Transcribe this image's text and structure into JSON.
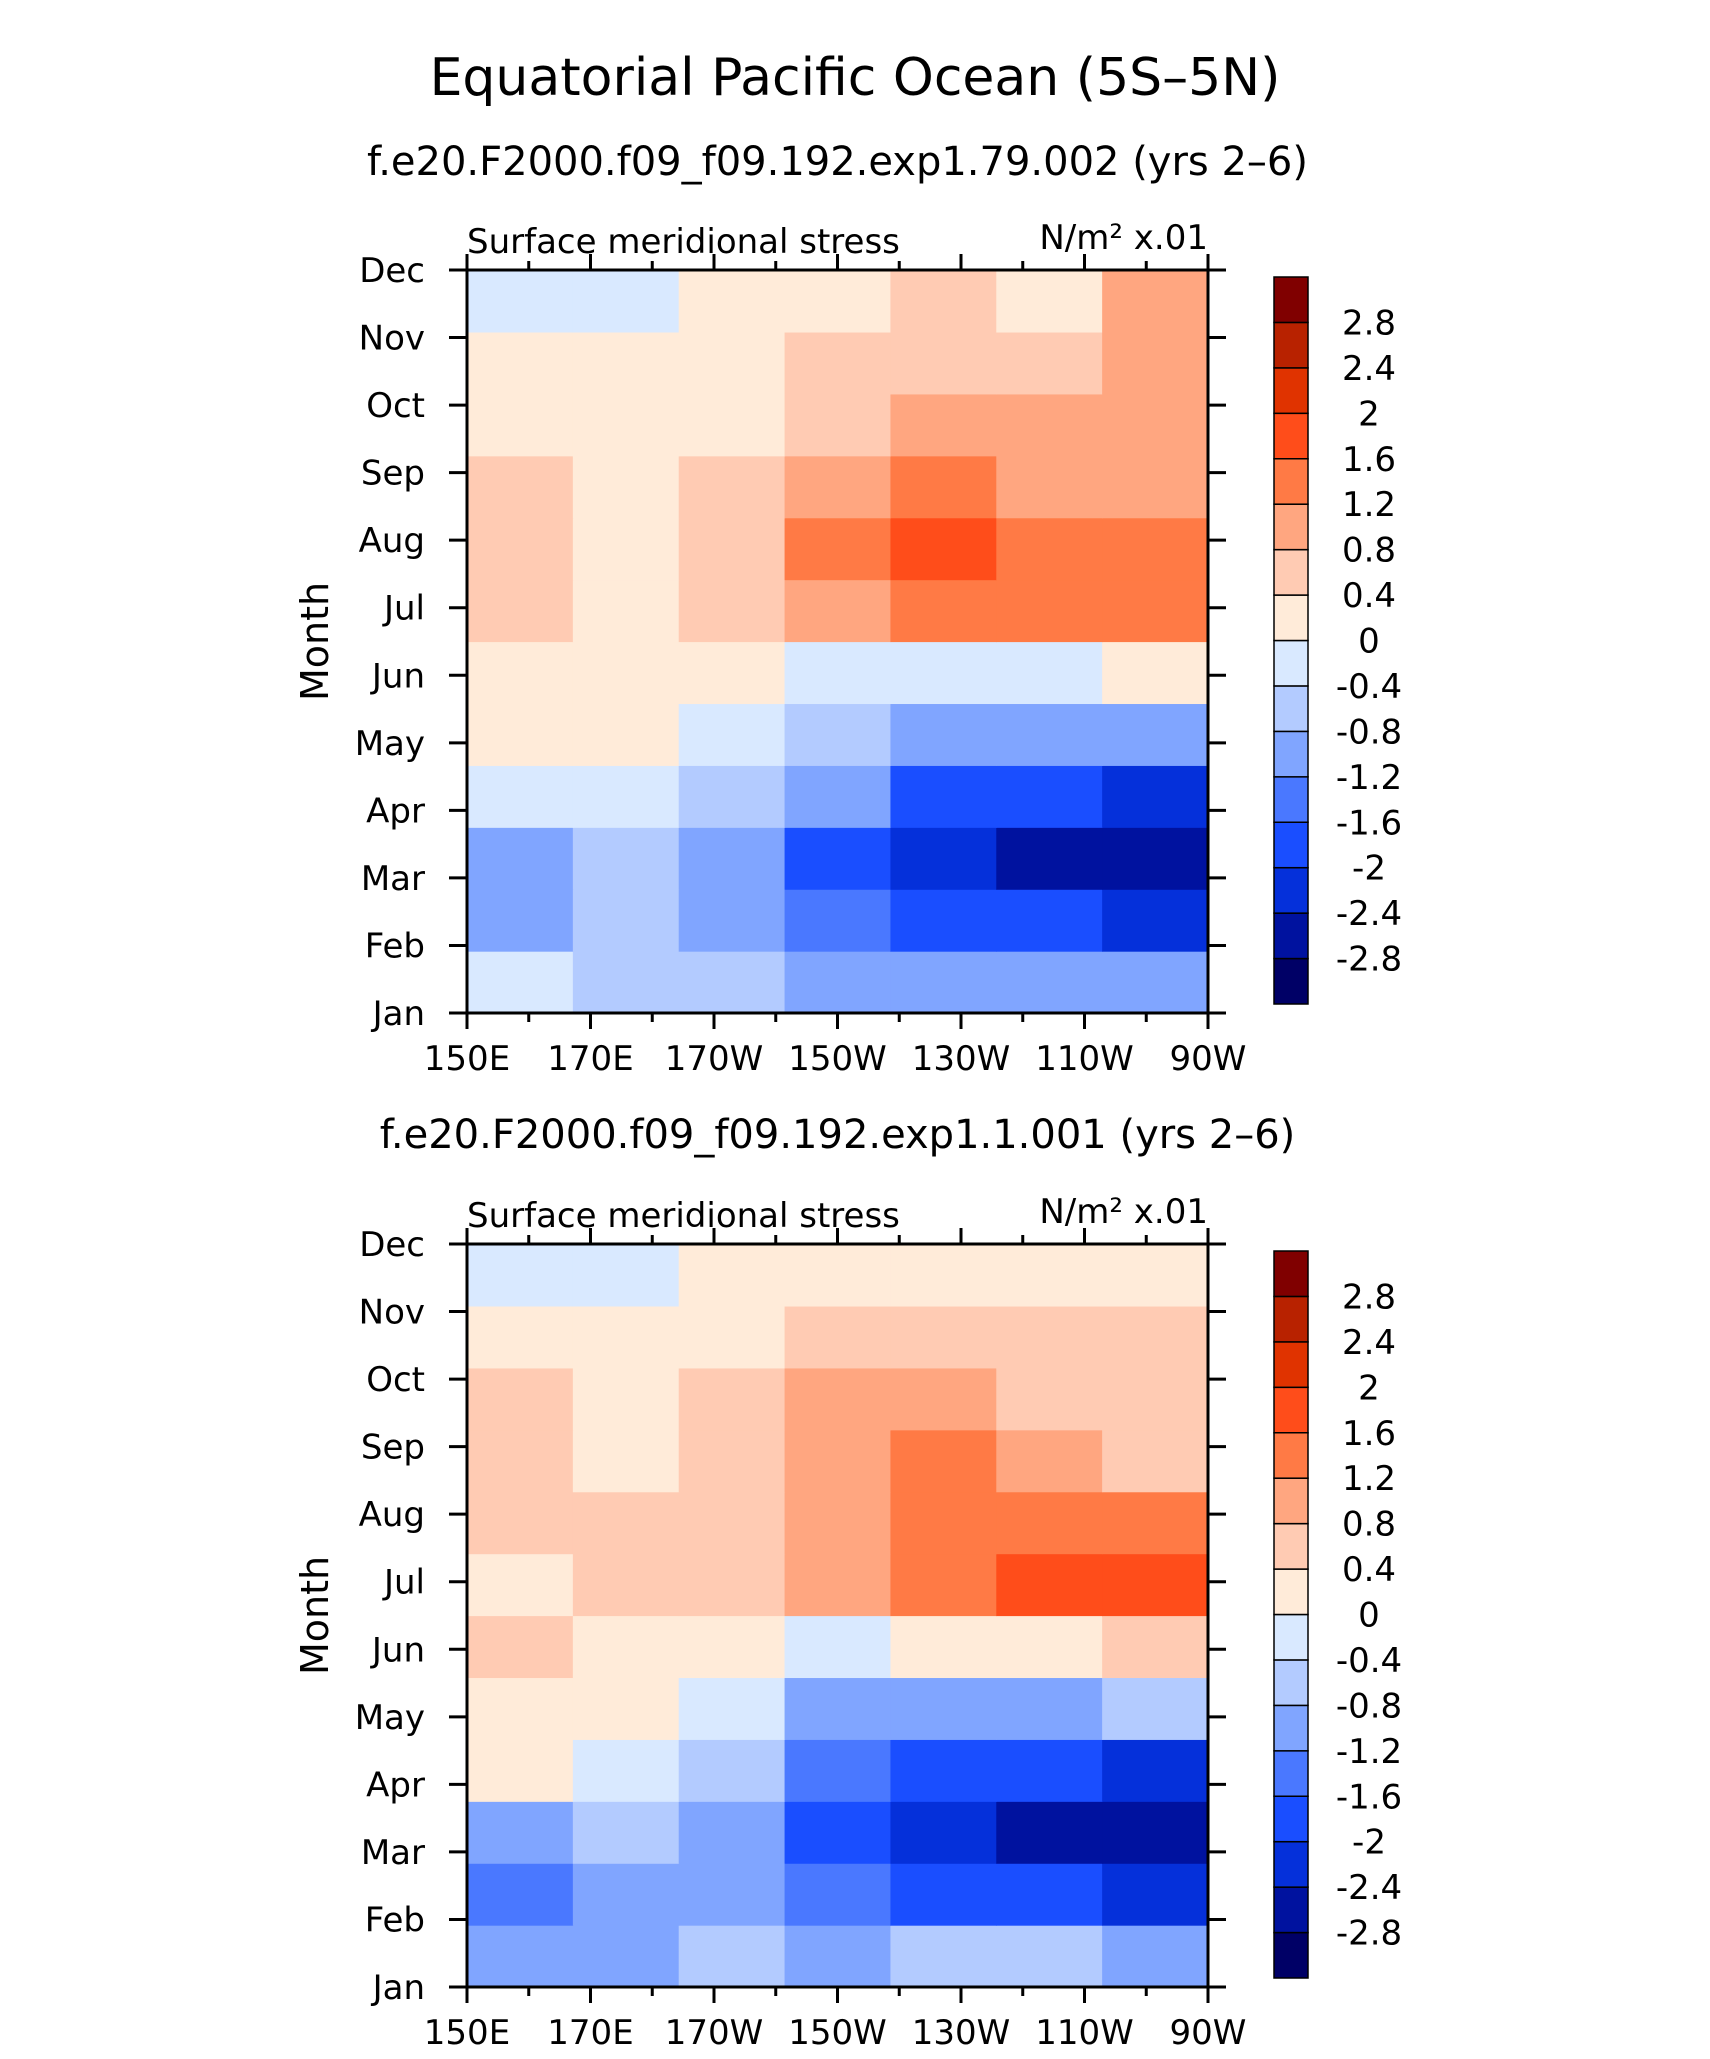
{
  "figure": {
    "title": "Equatorial Pacific Ocean (5S–5N)"
  },
  "chart_data": [
    {
      "type": "heatmap",
      "title": "f.e20.F2000.f09_f09.192.exp1.79.002 (yrs 2–6)",
      "left_label": "Surface meridional stress",
      "units_label": "N/m² x.01",
      "ylabel": "Month",
      "x": [
        "150E",
        "170E",
        "170W",
        "150W",
        "130W",
        "110W",
        "90W"
      ],
      "y": [
        "Jan",
        "Feb",
        "Mar",
        "Apr",
        "May",
        "Jun",
        "Jul",
        "Aug",
        "Sep",
        "Oct",
        "Nov",
        "Dec"
      ],
      "values": [
        [
          -0.3,
          -0.5,
          -0.7,
          -1.0,
          -1.0,
          -0.9,
          -1.0
        ],
        [
          -1.0,
          -0.5,
          -1.0,
          -1.3,
          -1.7,
          -2.0,
          -2.4
        ],
        [
          -1.0,
          -0.6,
          -1.2,
          -1.9,
          -2.2,
          -2.5,
          -2.6
        ],
        [
          -0.4,
          -0.3,
          -0.6,
          -1.1,
          -1.7,
          -2.0,
          -2.1
        ],
        [
          0.2,
          0.1,
          -0.3,
          -0.8,
          -1.0,
          -1.0,
          -0.9
        ],
        [
          0.2,
          0.2,
          0.1,
          -0.2,
          -0.3,
          -0.2,
          0.1
        ],
        [
          0.5,
          0.3,
          0.4,
          0.9,
          1.3,
          1.2,
          1.3
        ],
        [
          0.7,
          0.3,
          0.6,
          1.2,
          1.6,
          1.2,
          1.5
        ],
        [
          0.6,
          0.3,
          0.4,
          0.9,
          1.2,
          1.1,
          1.1
        ],
        [
          0.2,
          0.2,
          0.3,
          0.6,
          0.9,
          0.8,
          0.9
        ],
        [
          0.1,
          0.1,
          0.3,
          0.5,
          0.6,
          0.7,
          0.9
        ],
        [
          -0.1,
          -0.1,
          0.1,
          0.3,
          0.4,
          0.3,
          0.8
        ]
      ],
      "levels": [
        "-2.8",
        "-2.4",
        "-2",
        "-1.6",
        "-1.2",
        "-0.8",
        "-0.4",
        "0",
        "0.4",
        "0.8",
        "1.2",
        "1.6",
        "2",
        "2.4",
        "2.8"
      ],
      "colors": [
        "#000066",
        "#00129f",
        "#0530da",
        "#1a4eff",
        "#4a78ff",
        "#80a5ff",
        "#b3cbff",
        "#d9e9ff",
        "#ffebd9",
        "#ffcbb3",
        "#ffa680",
        "#ff7a45",
        "#ff4d1a",
        "#e03300",
        "#b82200",
        "#800000"
      ]
    },
    {
      "type": "heatmap",
      "title": "f.e20.F2000.f09_f09.192.exp1.1.001 (yrs 2–6)",
      "left_label": "Surface meridional stress",
      "units_label": "N/m² x.01",
      "ylabel": "Month",
      "x": [
        "150E",
        "170E",
        "170W",
        "150W",
        "130W",
        "110W",
        "90W"
      ],
      "y": [
        "Jan",
        "Feb",
        "Mar",
        "Apr",
        "May",
        "Jun",
        "Jul",
        "Aug",
        "Sep",
        "Oct",
        "Nov",
        "Dec"
      ],
      "values": [
        [
          -1.0,
          -0.9,
          -0.8,
          -1.0,
          -0.6,
          -0.6,
          -1.1
        ],
        [
          -1.3,
          -0.9,
          -0.9,
          -1.4,
          -1.8,
          -2.0,
          -2.2
        ],
        [
          -0.9,
          -0.8,
          -1.2,
          -1.9,
          -2.3,
          -2.6,
          -2.7
        ],
        [
          0.2,
          -0.2,
          -0.6,
          -1.3,
          -1.9,
          -2.0,
          -2.1
        ],
        [
          0.2,
          0.1,
          -0.4,
          -0.9,
          -1.1,
          -1.0,
          -0.8
        ],
        [
          0.5,
          0.3,
          0.2,
          -0.1,
          0.0,
          0.1,
          0.5
        ],
        [
          0.3,
          0.5,
          0.7,
          0.9,
          1.2,
          1.6,
          1.8
        ],
        [
          0.5,
          0.5,
          0.6,
          1.0,
          1.3,
          1.3,
          1.3
        ],
        [
          0.6,
          0.3,
          0.5,
          1.1,
          1.3,
          0.9,
          0.7
        ],
        [
          0.4,
          0.2,
          0.4,
          0.9,
          0.9,
          0.6,
          0.6
        ],
        [
          0.1,
          0.1,
          0.2,
          0.5,
          0.5,
          0.4,
          0.6
        ],
        [
          -0.1,
          -0.1,
          0.1,
          0.2,
          0.3,
          0.2,
          0.3
        ]
      ],
      "levels": [
        "-2.8",
        "-2.4",
        "-2",
        "-1.6",
        "-1.2",
        "-0.8",
        "-0.4",
        "0",
        "0.4",
        "0.8",
        "1.2",
        "1.6",
        "2",
        "2.4",
        "2.8"
      ],
      "colors": [
        "#000066",
        "#00129f",
        "#0530da",
        "#1a4eff",
        "#4a78ff",
        "#80a5ff",
        "#b3cbff",
        "#d9e9ff",
        "#ffebd9",
        "#ffcbb3",
        "#ffa680",
        "#ff7a45",
        "#ff4d1a",
        "#e03300",
        "#b82200",
        "#800000"
      ]
    }
  ]
}
